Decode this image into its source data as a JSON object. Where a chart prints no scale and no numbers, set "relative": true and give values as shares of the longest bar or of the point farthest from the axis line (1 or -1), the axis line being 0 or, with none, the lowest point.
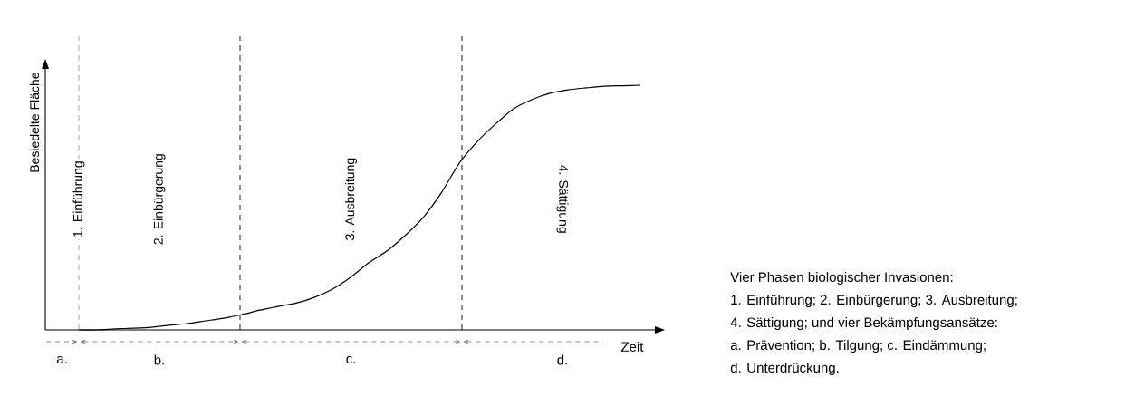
{
  "chart_data": {
    "type": "line",
    "relative": true,
    "xlabel": "Zeit",
    "ylabel": "Besiedelte Fläche",
    "color": "#000000",
    "categories": [
      null,
      null,
      null,
      null,
      null,
      null,
      null,
      null,
      null,
      null,
      null,
      null,
      null,
      null,
      null,
      null,
      null,
      null,
      null,
      null,
      null,
      null,
      null,
      null,
      null,
      null,
      null,
      null,
      null,
      null,
      null,
      null
    ],
    "values": [
      0,
      0,
      0.004,
      0.007,
      0.011,
      0.019,
      0.026,
      0.037,
      0.048,
      0.063,
      0.081,
      0.096,
      0.11,
      0.133,
      0.167,
      0.215,
      0.274,
      0.322,
      0.385,
      0.459,
      0.559,
      0.681,
      0.77,
      0.841,
      0.904,
      0.941,
      0.967,
      0.981,
      0.989,
      0.996,
      0.998,
      1.0
    ],
    "annotations": [
      "1. Einführung",
      "2. Einbürgerung",
      "3. Ausbreitung",
      "4. Sättigung",
      "a.",
      "b.",
      "c.",
      "d.",
      "Vier Phasen biologischer Invasionen:",
      "1. Einführung; 2. Einbürgerung; 3. Ausbreitung;",
      "4. Sättigung; und vier Bekämpfungsansätze:",
      "a. Prävention; b. Tilgung; c. Eindämmung;",
      "d. Unterdrückung."
    ]
  }
}
